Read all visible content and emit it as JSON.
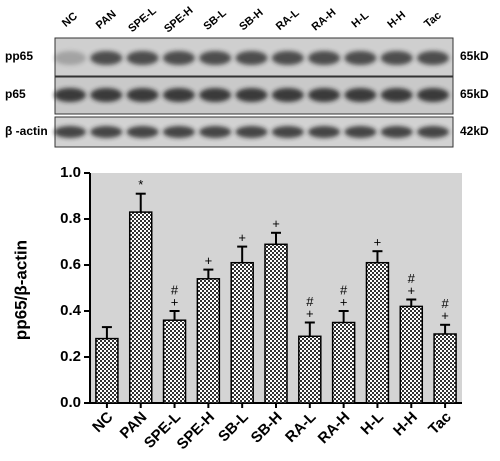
{
  "blot": {
    "lanes": [
      "NC",
      "PAN",
      "SPE-L",
      "SPE-H",
      "SB-L",
      "SB-H",
      "RA-L",
      "RA-H",
      "H-L",
      "H-H",
      "Tac"
    ],
    "rows": [
      {
        "label": "pp65",
        "size": "65kD"
      },
      {
        "label": "p65",
        "size": "65kD"
      },
      {
        "label": "β -actin",
        "size": "42kD"
      }
    ]
  },
  "chart_data": {
    "type": "bar",
    "y_label": "pp65/β-actin",
    "categories": [
      "NC",
      "PAN",
      "SPE-L",
      "SPE-H",
      "SB-L",
      "SB-H",
      "RA-L",
      "RA-H",
      "H-L",
      "H-H",
      "Tac"
    ],
    "values": [
      0.28,
      0.83,
      0.36,
      0.54,
      0.61,
      0.69,
      0.29,
      0.35,
      0.61,
      0.42,
      0.3
    ],
    "errors": [
      0.05,
      0.08,
      0.04,
      0.04,
      0.07,
      0.05,
      0.06,
      0.05,
      0.05,
      0.03,
      0.04
    ],
    "annotations": [
      null,
      [
        "*"
      ],
      [
        "+",
        "#"
      ],
      [
        "+"
      ],
      [
        "+"
      ],
      [
        "+"
      ],
      [
        "+",
        "#"
      ],
      [
        "+",
        "#"
      ],
      [
        "+"
      ],
      [
        "+",
        "#"
      ],
      [
        "+",
        "#"
      ]
    ],
    "color": "#333333",
    "plot_background": "#d4d4d4",
    "ylim": [
      0,
      1
    ],
    "yticks": [
      {
        "value": 0,
        "label": "0.0"
      },
      0.2,
      0.4,
      0.6,
      0.8,
      {
        "value": 1,
        "label": "1.0"
      }
    ]
  }
}
